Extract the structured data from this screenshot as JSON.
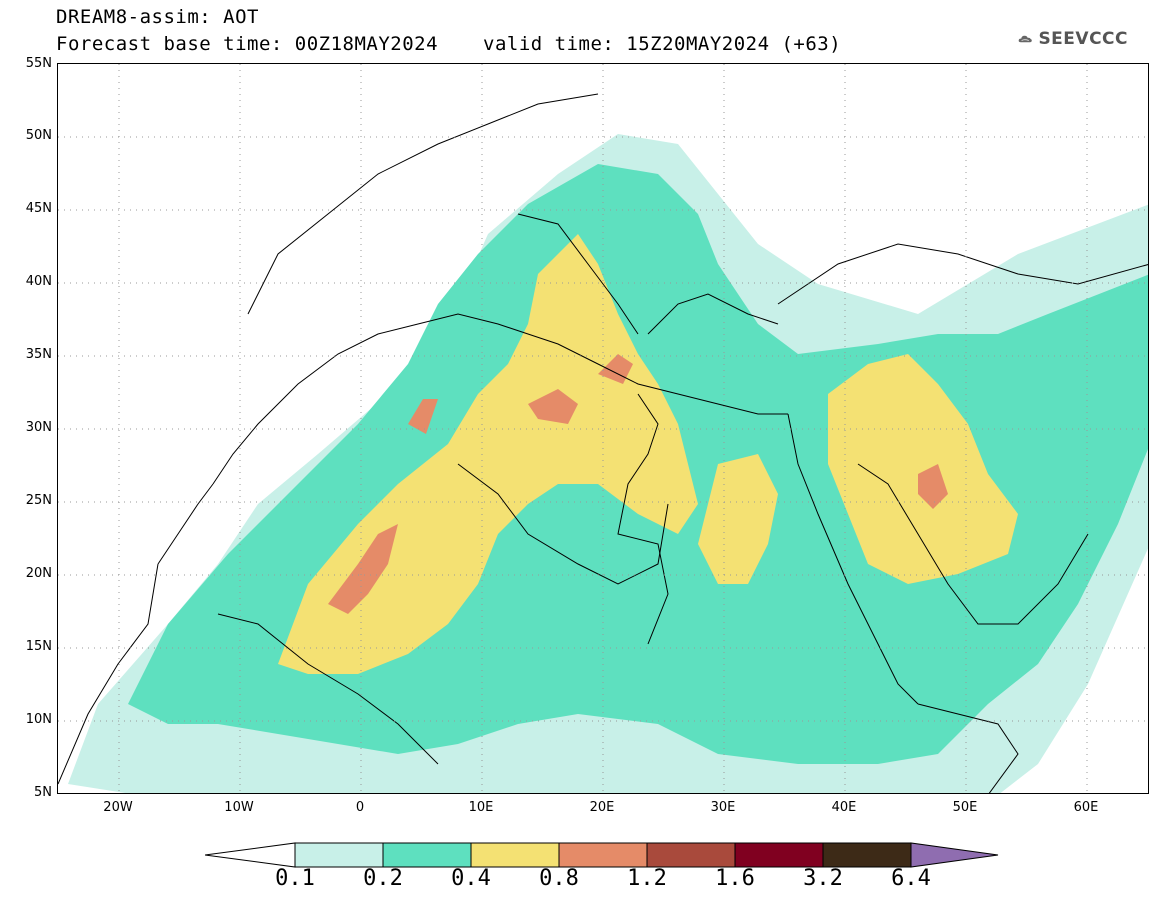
{
  "header": {
    "title_line1": "DREAM8-assim: AOT",
    "title_line2": "Forecast base time: 00Z18MAY2024",
    "valid_time": "valid time: 15Z20MAY2024 (+63)"
  },
  "logo": {
    "text": "SEEVCCC",
    "icon": "cloud-icon"
  },
  "map": {
    "variable": "Aerosol Optical Thickness",
    "lat_range": [
      5,
      55
    ],
    "lon_range": [
      -25,
      65
    ],
    "lat_labels": [
      "55N",
      "50N",
      "45N",
      "40N",
      "35N",
      "30N",
      "25N",
      "20N",
      "15N",
      "10N",
      "5N"
    ],
    "lon_labels": [
      "20W",
      "10W",
      "0",
      "10E",
      "20E",
      "30E",
      "40E",
      "50E",
      "60E"
    ],
    "gridlines": "dotted"
  },
  "colorbar": {
    "levels": [
      "0.1",
      "0.2",
      "0.4",
      "0.8",
      "1.2",
      "1.6",
      "3.2",
      "6.4"
    ],
    "colors": [
      "#c8f0e8",
      "#5ee0bf",
      "#f4e173",
      "#e58b68",
      "#a94a3c",
      "#800020",
      "#3d2a17",
      "#8f6db0"
    ],
    "under_color": "#ffffff"
  }
}
